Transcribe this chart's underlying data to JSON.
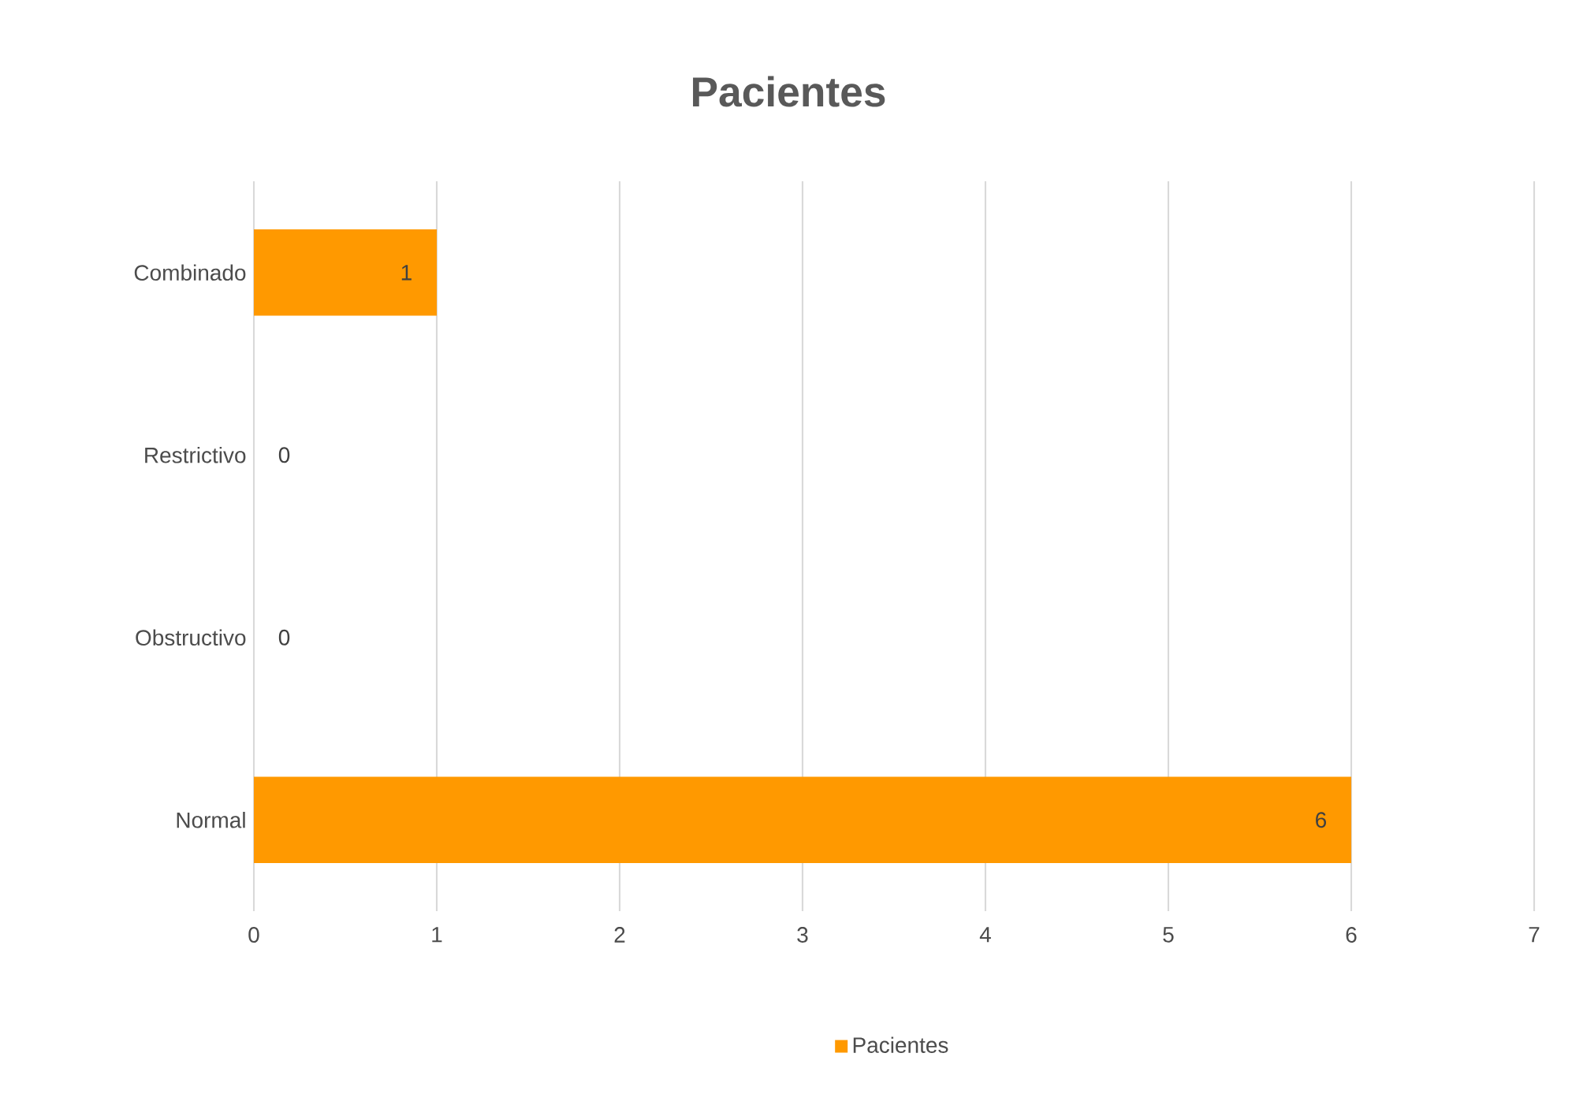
{
  "chart_data": {
    "type": "bar",
    "orientation": "horizontal",
    "title": "Pacientes",
    "categories": [
      "Combinado",
      "Restrictivo",
      "Obstructivo",
      "Normal"
    ],
    "series": [
      {
        "name": "Pacientes",
        "color": "#ff9900",
        "values": [
          1,
          0,
          0,
          6
        ]
      }
    ],
    "xlim": [
      0,
      7
    ],
    "xticks": [
      0,
      1,
      2,
      3,
      4,
      5,
      6,
      7
    ],
    "grid": "x",
    "legend": "bottom",
    "data_labels": true
  }
}
